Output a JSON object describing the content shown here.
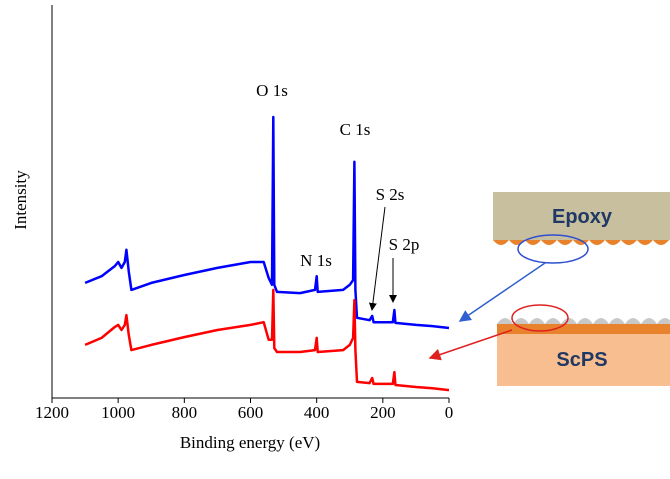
{
  "chart_data": {
    "type": "line",
    "x_label": "Binding energy (eV)",
    "y_label": "Intensity",
    "xlim": [
      1200,
      0
    ],
    "xticks": [
      1200,
      1000,
      800,
      600,
      400,
      200,
      0
    ],
    "ylim": [
      0,
      100
    ],
    "peak_labels": [
      "O 1s",
      "C 1s",
      "N 1s",
      "S 2s",
      "S 2p"
    ],
    "x": [
      1100,
      1050,
      1010,
      1000,
      990,
      980,
      975,
      968,
      960,
      900,
      800,
      700,
      600,
      560,
      545,
      535,
      531,
      528,
      520,
      450,
      405,
      400,
      397,
      320,
      300,
      290,
      286,
      283,
      278,
      240,
      232,
      228,
      170,
      165,
      162,
      100,
      50,
      0
    ],
    "series": [
      {
        "color": "#0000ff",
        "values": [
          29.3,
          31.0,
          33.6,
          34.6,
          33.1,
          34.6,
          37.7,
          32.1,
          27.5,
          29.3,
          31.3,
          33.1,
          34.6,
          34.6,
          30.5,
          28.8,
          71.5,
          28.8,
          27.0,
          26.7,
          27.5,
          31.0,
          27.0,
          27.5,
          28.8,
          30.0,
          60.1,
          27.5,
          20.4,
          19.8,
          20.9,
          19.3,
          19.3,
          22.4,
          19.1,
          18.6,
          18.3,
          17.8
        ]
      },
      {
        "color": "#ff0000",
        "values": [
          13.5,
          15.3,
          18.1,
          18.6,
          17.3,
          18.6,
          21.1,
          16.0,
          12.2,
          13.5,
          15.5,
          17.3,
          18.6,
          19.3,
          14.8,
          14.8,
          27.5,
          12.7,
          11.7,
          11.7,
          12.2,
          15.3,
          11.7,
          12.2,
          13.5,
          15.3,
          24.9,
          12.2,
          4.1,
          3.8,
          5.1,
          3.6,
          3.6,
          6.6,
          3.3,
          2.8,
          2.5,
          2.0
        ]
      }
    ]
  },
  "diagram": {
    "labels": [
      "Epoxy",
      "ScPS"
    ]
  }
}
